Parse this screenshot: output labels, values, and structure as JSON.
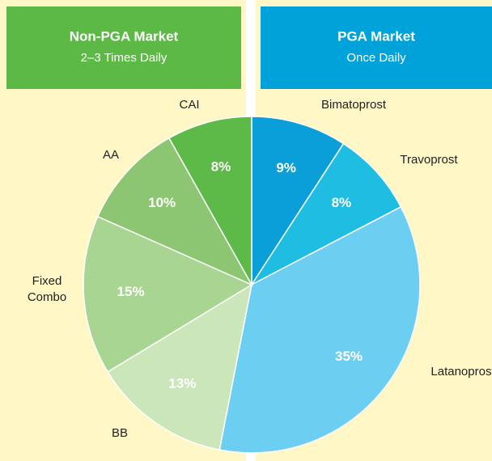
{
  "chart_data": {
    "type": "pie",
    "groups": [
      {
        "title": "Non-PGA Market",
        "subtitle": "2–3 Times Daily",
        "color": "#5cb946"
      },
      {
        "title": "PGA Market",
        "subtitle": "Once Daily",
        "color": "#00a3d9"
      }
    ],
    "categories": [
      "Bimatoprost",
      "Travoprost",
      "Latanoprost",
      "BB",
      "Fixed Combo",
      "AA",
      "CAI"
    ],
    "values": [
      9,
      8,
      35,
      13,
      15,
      10,
      8
    ],
    "value_labels": [
      "9%",
      "8%",
      "35%",
      "13%",
      "15%",
      "10%",
      "8%"
    ],
    "colors": [
      "#0a9fd8",
      "#20bde3",
      "#6ccef0",
      "#cbe6b8",
      "#a9d592",
      "#8cc672",
      "#5db948"
    ]
  }
}
